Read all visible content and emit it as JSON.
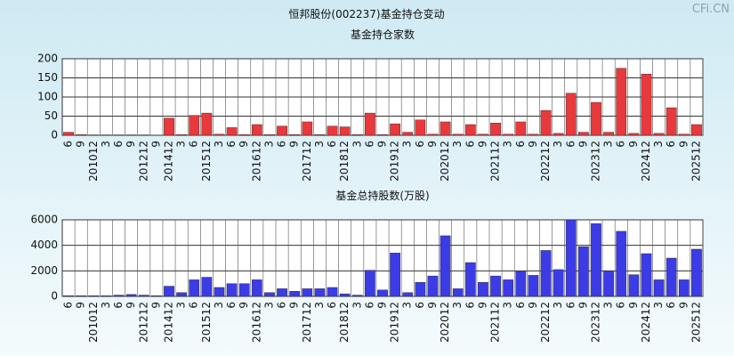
{
  "title": "恒邦股份(002237)基金持仓变动",
  "watermark": "CFi.CN",
  "chart_data": [
    {
      "type": "bar",
      "title": "基金持仓家数",
      "categories": [
        "6",
        "9",
        "201012",
        "3",
        "6",
        "9",
        "201212",
        "9",
        "201412",
        "3",
        "6",
        "201512",
        "3",
        "6",
        "9",
        "201612",
        "3",
        "6",
        "9",
        "201712",
        "3",
        "6",
        "201812",
        "3",
        "6",
        "9",
        "201912",
        "3",
        "6",
        "9",
        "202012",
        "3",
        "6",
        "9",
        "202112",
        "3",
        "6",
        "9",
        "202212",
        "3",
        "6",
        "9",
        "202312",
        "3",
        "6",
        "9",
        "202412",
        "3",
        "6",
        "9",
        "202512"
      ],
      "values": [
        8,
        2,
        1,
        1,
        1,
        1,
        1,
        0,
        45,
        2,
        52,
        58,
        3,
        20,
        2,
        28,
        2,
        24,
        2,
        35,
        2,
        24,
        22,
        2,
        58,
        2,
        30,
        8,
        40,
        3,
        35,
        3,
        28,
        3,
        32,
        3,
        35,
        3,
        65,
        5,
        110,
        8,
        86,
        8,
        175,
        5,
        160,
        5,
        72,
        3,
        28
      ],
      "color": "#e8393c",
      "ylim": [
        0,
        200
      ],
      "yticks": [
        0,
        50,
        100,
        150,
        200
      ],
      "grid": true
    },
    {
      "type": "bar",
      "title": "基金总持股数(万股)",
      "categories": [
        "6",
        "9",
        "201012",
        "3",
        "6",
        "9",
        "201212",
        "9",
        "201412",
        "3",
        "6",
        "201512",
        "3",
        "6",
        "9",
        "201612",
        "3",
        "6",
        "9",
        "201712",
        "3",
        "6",
        "201812",
        "3",
        "6",
        "9",
        "201912",
        "3",
        "6",
        "9",
        "202012",
        "3",
        "6",
        "9",
        "202112",
        "3",
        "6",
        "9",
        "202212",
        "3",
        "6",
        "9",
        "202312",
        "3",
        "6",
        "9",
        "202412",
        "3",
        "6",
        "9",
        "202512"
      ],
      "values": [
        50,
        50,
        50,
        50,
        100,
        150,
        100,
        50,
        800,
        300,
        1300,
        1500,
        700,
        1000,
        1000,
        1300,
        300,
        600,
        400,
        600,
        600,
        700,
        200,
        100,
        2050,
        500,
        3400,
        300,
        1100,
        1600,
        4750,
        600,
        2650,
        1100,
        1600,
        1300,
        1950,
        1650,
        3600,
        2100,
        6000,
        3900,
        5700,
        2000,
        5100,
        1700,
        3350,
        1300,
        3000,
        1300,
        3700
      ],
      "color": "#3c3ce6",
      "ylim": [
        0,
        6000
      ],
      "yticks": [
        0,
        2000,
        4000,
        6000
      ],
      "grid": true
    }
  ]
}
